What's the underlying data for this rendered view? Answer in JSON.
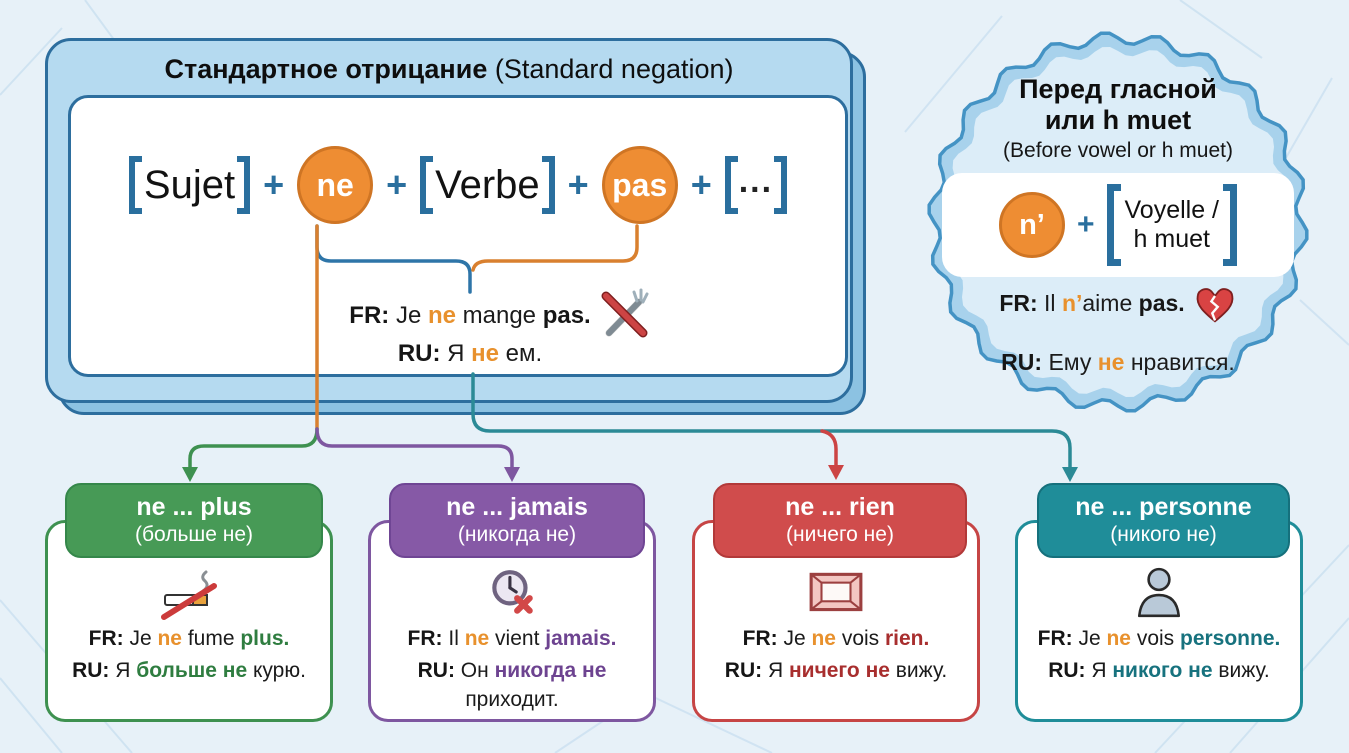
{
  "main_panel": {
    "title_bold": "Стандартное отрицание",
    "title_rest": " (Standard negation)",
    "formula": {
      "subject": "Sujet",
      "ne": "ne",
      "verb": "Verbe",
      "pas": "pas",
      "ellipsis": "...",
      "plus": "+"
    },
    "example": {
      "fr": [
        {
          "t": "FR: ",
          "c": "b"
        },
        {
          "t": "Je ",
          "c": ""
        },
        {
          "t": "ne",
          "c": "o"
        },
        {
          "t": " mange ",
          "c": ""
        },
        {
          "t": "pas.",
          "c": "b"
        }
      ],
      "ru": [
        {
          "t": "RU: ",
          "c": "b"
        },
        {
          "t": "Я ",
          "c": ""
        },
        {
          "t": "не",
          "c": "o"
        },
        {
          "t": " ем.",
          "c": ""
        }
      ],
      "icon": "crossed-fork-knife-icon"
    }
  },
  "badge": {
    "title_line1": "Перед гласной",
    "title_line2": "или h muet",
    "subtitle": "(Before vowel or h muet)",
    "formula": {
      "contraction": "n’",
      "plus": "+",
      "bracket_line1": "Voyelle /",
      "bracket_line2": "h muet"
    },
    "example": {
      "fr": [
        {
          "t": "FR: ",
          "c": "b"
        },
        {
          "t": "Il ",
          "c": ""
        },
        {
          "t": "n’",
          "c": "o"
        },
        {
          "t": "aime ",
          "c": ""
        },
        {
          "t": "pas.",
          "c": "b"
        }
      ],
      "ru": [
        {
          "t": "RU: ",
          "c": "b"
        },
        {
          "t": "Ему ",
          "c": ""
        },
        {
          "t": "не",
          "c": "o"
        },
        {
          "t": " нравится.",
          "c": ""
        }
      ],
      "icon": "broken-heart-icon"
    }
  },
  "cards": [
    {
      "title": "ne ... plus",
      "subtitle": "(больше не)",
      "icon": "no-smoking-icon",
      "fr": [
        {
          "t": "FR: ",
          "c": "b"
        },
        {
          "t": "Je ",
          "c": ""
        },
        {
          "t": "ne",
          "c": "o"
        },
        {
          "t": " fume ",
          "c": ""
        },
        {
          "t": "plus.",
          "c": "g"
        }
      ],
      "ru": [
        {
          "t": "RU: ",
          "c": "b"
        },
        {
          "t": "Я ",
          "c": ""
        },
        {
          "t": "больше не",
          "c": "g"
        },
        {
          "t": " курю.",
          "c": ""
        }
      ]
    },
    {
      "title": "ne ... jamais",
      "subtitle": "(никогда не)",
      "icon": "clock-crossed-icon",
      "fr": [
        {
          "t": "FR: ",
          "c": "b"
        },
        {
          "t": "Il ",
          "c": ""
        },
        {
          "t": "ne",
          "c": "o"
        },
        {
          "t": " vient ",
          "c": ""
        },
        {
          "t": "jamais.",
          "c": "p"
        }
      ],
      "ru": [
        {
          "t": "RU: ",
          "c": "b"
        },
        {
          "t": "Он ",
          "c": ""
        },
        {
          "t": "никогда не",
          "c": "p"
        },
        {
          "t": " приходит.",
          "c": ""
        }
      ]
    },
    {
      "title": "ne ... rien",
      "subtitle": "(ничего не)",
      "icon": "empty-frame-icon",
      "fr": [
        {
          "t": "FR: ",
          "c": "b"
        },
        {
          "t": "Je ",
          "c": ""
        },
        {
          "t": "ne",
          "c": "o"
        },
        {
          "t": " vois ",
          "c": ""
        },
        {
          "t": "rien.",
          "c": "r"
        }
      ],
      "ru": [
        {
          "t": "RU: ",
          "c": "b"
        },
        {
          "t": "Я ",
          "c": ""
        },
        {
          "t": "ничего не",
          "c": "r"
        },
        {
          "t": " вижу.",
          "c": ""
        }
      ]
    },
    {
      "title": "ne ... personne",
      "subtitle": "(никого не)",
      "icon": "person-icon",
      "fr": [
        {
          "t": "FR: ",
          "c": "b"
        },
        {
          "t": "Je ",
          "c": ""
        },
        {
          "t": "ne",
          "c": "o"
        },
        {
          "t": " vois ",
          "c": ""
        },
        {
          "t": "personne.",
          "c": "t"
        }
      ],
      "ru": [
        {
          "t": "RU: ",
          "c": "b"
        },
        {
          "t": "Я ",
          "c": ""
        },
        {
          "t": "никого не",
          "c": "t"
        },
        {
          "t": " вижу.",
          "c": ""
        }
      ]
    }
  ],
  "colors": {
    "background": "#e7f1f8",
    "panel_fill": "#b5daf0",
    "panel_border": "#2d6e9e",
    "blue_accent": "#2a6f9e",
    "orange_circle": "#ee8d33",
    "orange_text": "#e8912d",
    "green": "#2f7d40",
    "purple": "#6d4390",
    "red": "#a82e2e",
    "teal": "#17727e",
    "badge_fill": "#dcedf8"
  }
}
